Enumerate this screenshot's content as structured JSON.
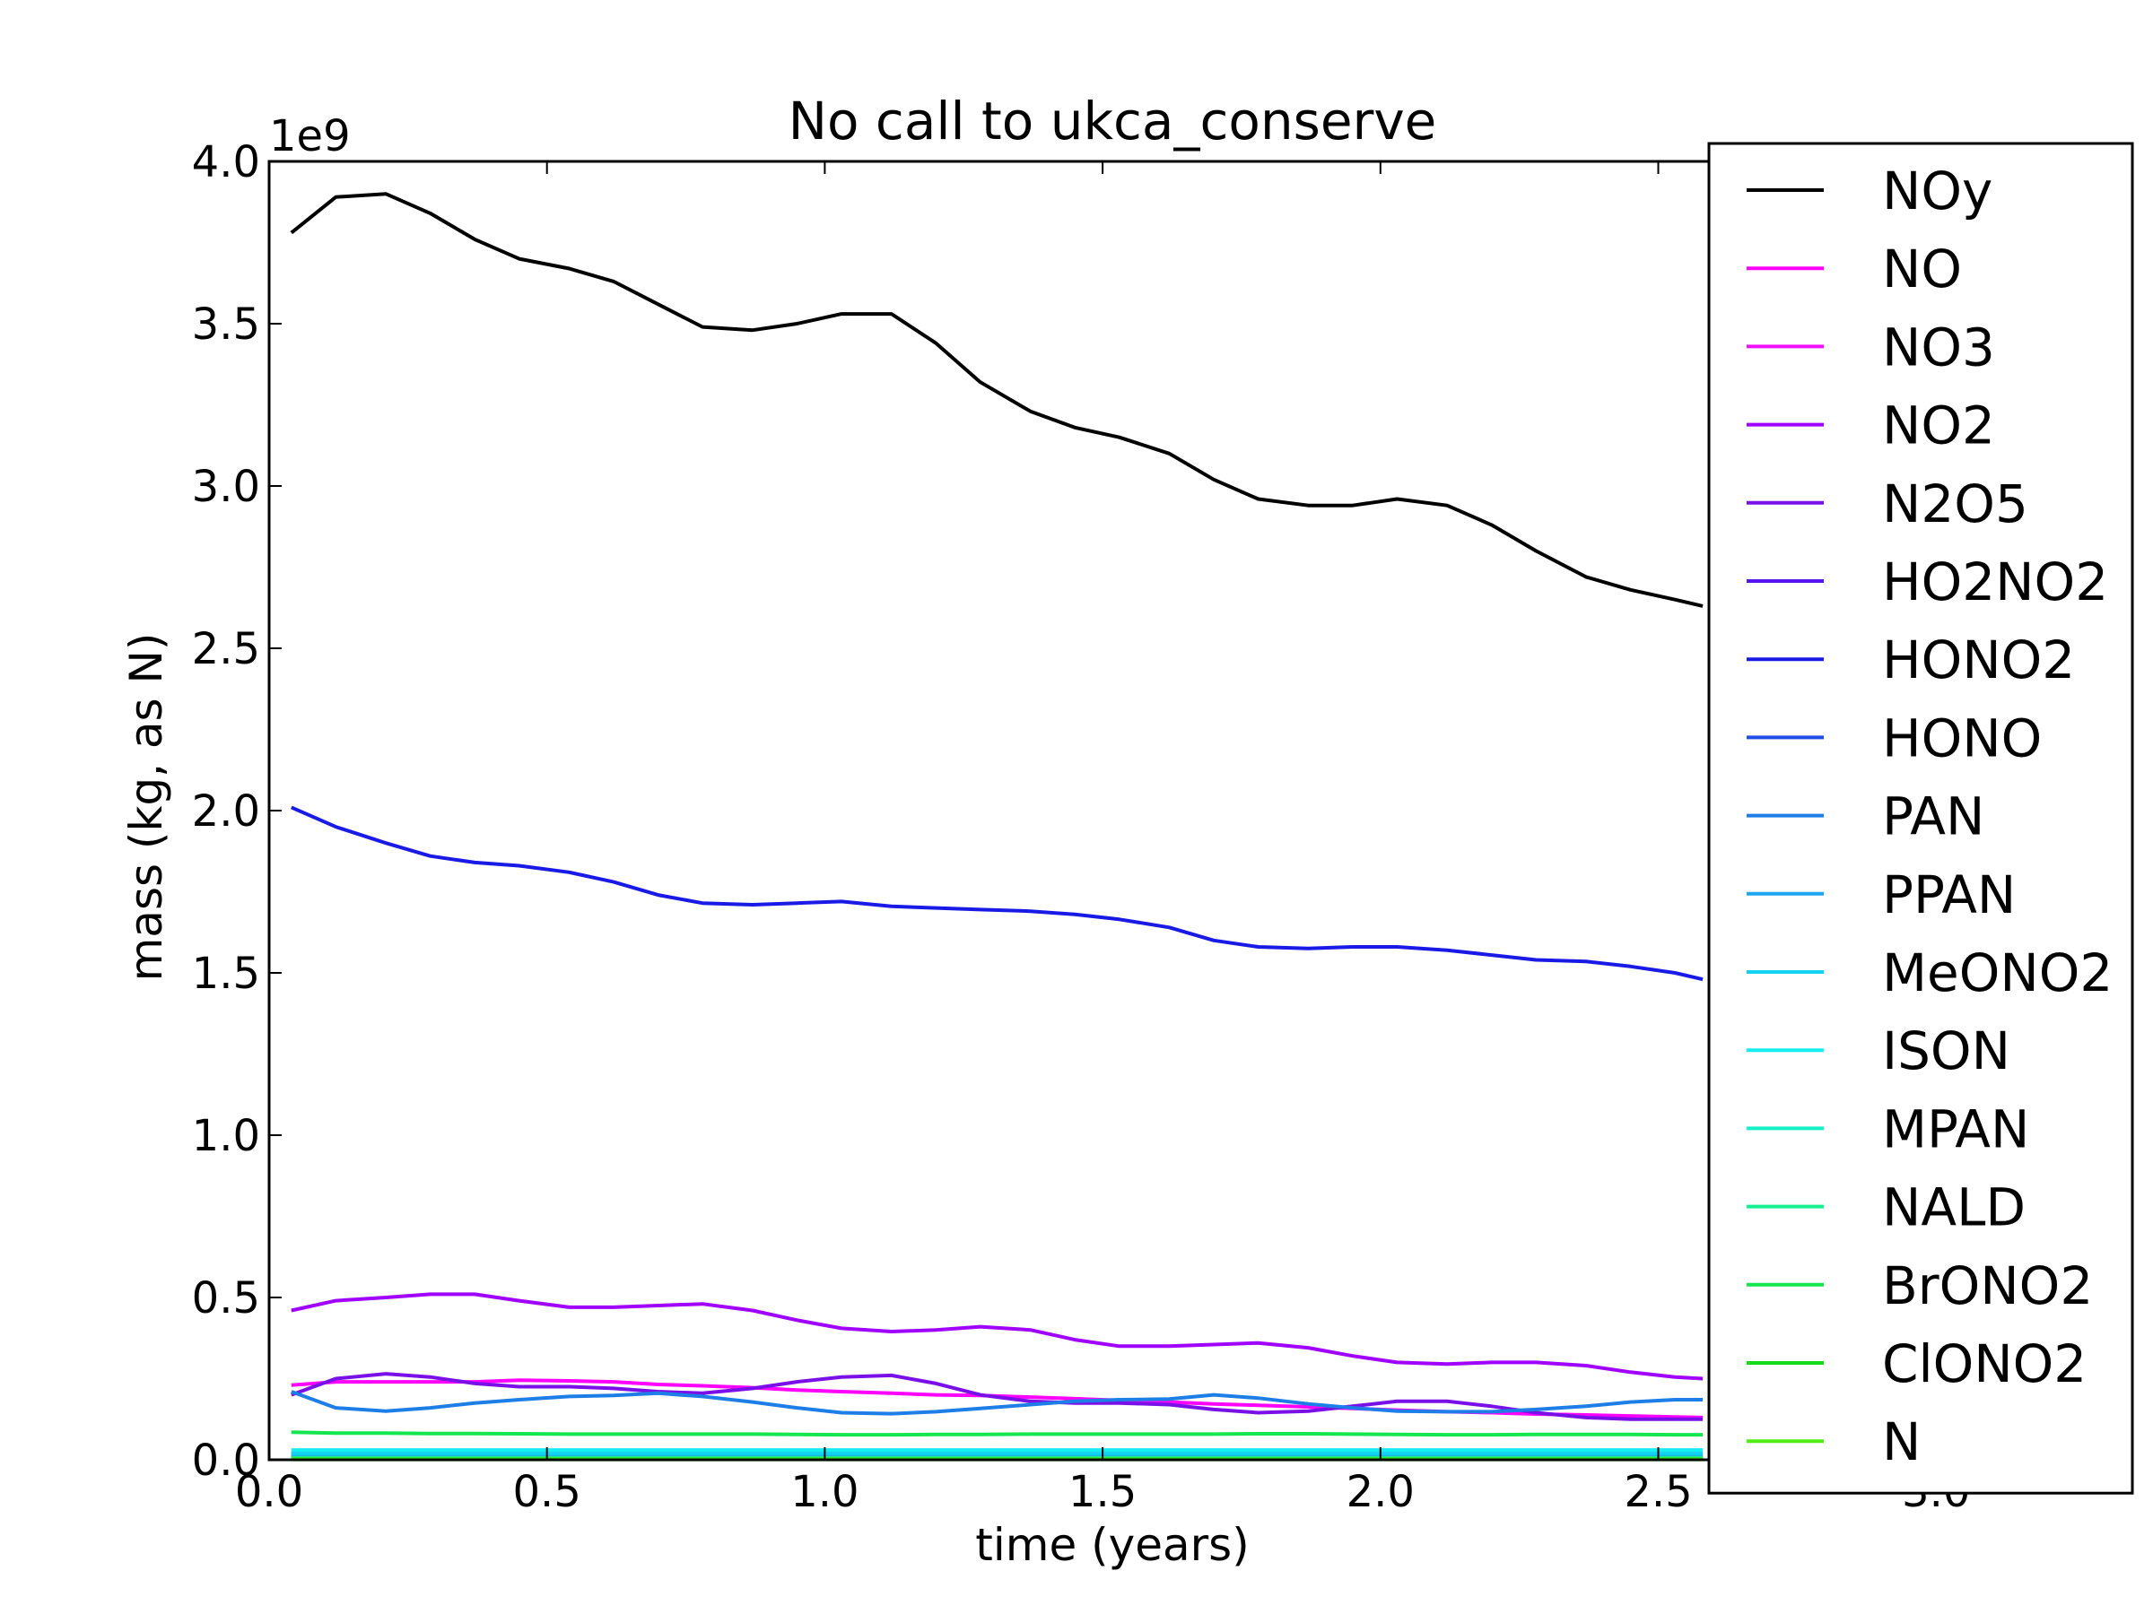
{
  "chart_data": {
    "type": "line",
    "title": "No call to ukca_conserve",
    "xlabel": "time (years)",
    "ylabel": "mass (kg, as N)",
    "y_multiplier_label": "1e9",
    "xlim": [
      0.0,
      3.35
    ],
    "ylim": [
      0.0,
      4.0
    ],
    "xticks": [
      0.0,
      0.5,
      1.0,
      1.5,
      2.0,
      2.5,
      3.0
    ],
    "xtick_labels": [
      "0.0",
      "0.5",
      "1.0",
      "1.5",
      "2.0",
      "2.5",
      "3.0"
    ],
    "yticks": [
      0.0,
      0.5,
      1.0,
      1.5,
      2.0,
      2.5,
      3.0,
      3.5,
      4.0
    ],
    "ytick_labels": [
      "0.0",
      "0.5",
      "1.0",
      "1.5",
      "2.0",
      "2.5",
      "3.0",
      "3.5",
      "4.0"
    ],
    "grid": false,
    "legend_position": "right",
    "x": [
      0.04,
      0.12,
      0.21,
      0.29,
      0.37,
      0.45,
      0.54,
      0.62,
      0.7,
      0.78,
      0.87,
      0.95,
      1.03,
      1.12,
      1.2,
      1.28,
      1.37,
      1.45,
      1.53,
      1.62,
      1.7,
      1.78,
      1.87,
      1.95,
      2.03,
      2.12,
      2.2,
      2.28,
      2.37,
      2.45,
      2.53,
      2.58
    ],
    "series": [
      {
        "name": "NOy",
        "color": "#000000",
        "values": [
          3.78,
          3.89,
          3.9,
          3.84,
          3.76,
          3.7,
          3.67,
          3.63,
          3.56,
          3.49,
          3.48,
          3.5,
          3.53,
          3.53,
          3.44,
          3.32,
          3.23,
          3.18,
          3.15,
          3.1,
          3.02,
          2.96,
          2.94,
          2.94,
          2.96,
          2.94,
          2.88,
          2.8,
          2.72,
          2.68,
          2.65,
          2.63
        ]
      },
      {
        "name": "NO",
        "color": "#ff00ff",
        "values": [
          0.23,
          0.24,
          0.24,
          0.24,
          0.24,
          0.245,
          0.243,
          0.24,
          0.232,
          0.228,
          0.222,
          0.215,
          0.21,
          0.205,
          0.2,
          0.198,
          0.193,
          0.188,
          0.183,
          0.178,
          0.172,
          0.168,
          0.163,
          0.158,
          0.153,
          0.148,
          0.145,
          0.141,
          0.138,
          0.135,
          0.132,
          0.13
        ]
      },
      {
        "name": "NO3",
        "color": "#f010ff",
        "values": [
          0.012,
          0.012,
          0.012,
          0.012,
          0.012,
          0.012,
          0.012,
          0.012,
          0.012,
          0.012,
          0.012,
          0.012,
          0.012,
          0.012,
          0.012,
          0.012,
          0.012,
          0.012,
          0.012,
          0.012,
          0.012,
          0.012,
          0.012,
          0.012,
          0.012,
          0.012,
          0.012,
          0.012,
          0.012,
          0.012,
          0.012,
          0.012
        ]
      },
      {
        "name": "NO2",
        "color": "#a000ff",
        "values": [
          0.46,
          0.49,
          0.5,
          0.51,
          0.51,
          0.49,
          0.47,
          0.47,
          0.475,
          0.48,
          0.46,
          0.43,
          0.405,
          0.395,
          0.4,
          0.41,
          0.4,
          0.37,
          0.35,
          0.35,
          0.355,
          0.36,
          0.345,
          0.32,
          0.3,
          0.295,
          0.3,
          0.3,
          0.29,
          0.27,
          0.255,
          0.25
        ]
      },
      {
        "name": "N2O5",
        "color": "#7a10e8",
        "values": [
          0.2,
          0.25,
          0.265,
          0.255,
          0.235,
          0.225,
          0.225,
          0.22,
          0.21,
          0.205,
          0.22,
          0.24,
          0.255,
          0.26,
          0.235,
          0.2,
          0.18,
          0.175,
          0.175,
          0.17,
          0.155,
          0.145,
          0.15,
          0.165,
          0.18,
          0.18,
          0.165,
          0.145,
          0.13,
          0.125,
          0.125,
          0.125
        ]
      },
      {
        "name": "HO2NO2",
        "color": "#5514f0",
        "values": [
          0.02,
          0.02,
          0.02,
          0.02,
          0.02,
          0.02,
          0.02,
          0.02,
          0.02,
          0.02,
          0.02,
          0.02,
          0.02,
          0.02,
          0.02,
          0.02,
          0.02,
          0.02,
          0.02,
          0.02,
          0.02,
          0.02,
          0.02,
          0.02,
          0.02,
          0.02,
          0.02,
          0.02,
          0.02,
          0.02,
          0.02,
          0.02
        ]
      },
      {
        "name": "HONO2",
        "color": "#1a1ae6",
        "values": [
          2.01,
          1.95,
          1.9,
          1.86,
          1.84,
          1.83,
          1.81,
          1.78,
          1.74,
          1.715,
          1.71,
          1.715,
          1.72,
          1.705,
          1.7,
          1.695,
          1.69,
          1.68,
          1.665,
          1.64,
          1.6,
          1.58,
          1.575,
          1.58,
          1.58,
          1.57,
          1.555,
          1.54,
          1.535,
          1.52,
          1.5,
          1.48
        ]
      },
      {
        "name": "HONO",
        "color": "#1e4ee6",
        "values": [
          0.008,
          0.008,
          0.008,
          0.008,
          0.008,
          0.008,
          0.008,
          0.008,
          0.008,
          0.008,
          0.008,
          0.008,
          0.008,
          0.008,
          0.008,
          0.008,
          0.008,
          0.008,
          0.008,
          0.008,
          0.008,
          0.008,
          0.008,
          0.008,
          0.008,
          0.008,
          0.008,
          0.008,
          0.008,
          0.008,
          0.008,
          0.008
        ]
      },
      {
        "name": "PAN",
        "color": "#1e7ee8",
        "values": [
          0.21,
          0.16,
          0.15,
          0.16,
          0.175,
          0.185,
          0.195,
          0.198,
          0.205,
          0.195,
          0.178,
          0.16,
          0.145,
          0.142,
          0.148,
          0.158,
          0.17,
          0.18,
          0.185,
          0.187,
          0.2,
          0.19,
          0.172,
          0.16,
          0.15,
          0.148,
          0.148,
          0.155,
          0.165,
          0.178,
          0.185,
          0.185
        ]
      },
      {
        "name": "PPAN",
        "color": "#1ea6f0",
        "values": [
          0.01,
          0.01,
          0.01,
          0.01,
          0.01,
          0.01,
          0.01,
          0.01,
          0.01,
          0.01,
          0.01,
          0.01,
          0.01,
          0.01,
          0.01,
          0.01,
          0.01,
          0.01,
          0.01,
          0.01,
          0.01,
          0.01,
          0.01,
          0.01,
          0.01,
          0.01,
          0.01,
          0.01,
          0.01,
          0.01,
          0.01,
          0.01
        ]
      },
      {
        "name": "MeONO2",
        "color": "#14d2f0",
        "values": [
          0.02,
          0.02,
          0.02,
          0.02,
          0.02,
          0.02,
          0.02,
          0.02,
          0.02,
          0.02,
          0.02,
          0.02,
          0.02,
          0.02,
          0.02,
          0.02,
          0.02,
          0.02,
          0.02,
          0.02,
          0.02,
          0.02,
          0.02,
          0.02,
          0.02,
          0.02,
          0.02,
          0.02,
          0.02,
          0.02,
          0.02,
          0.02
        ]
      },
      {
        "name": "ISON",
        "color": "#14eef0",
        "values": [
          0.03,
          0.03,
          0.03,
          0.03,
          0.03,
          0.03,
          0.03,
          0.03,
          0.03,
          0.03,
          0.03,
          0.03,
          0.03,
          0.03,
          0.03,
          0.03,
          0.03,
          0.03,
          0.03,
          0.03,
          0.03,
          0.03,
          0.03,
          0.03,
          0.03,
          0.03,
          0.03,
          0.03,
          0.03,
          0.03,
          0.03,
          0.03
        ]
      },
      {
        "name": "MPAN",
        "color": "#14f0c8",
        "values": [
          0.004,
          0.004,
          0.004,
          0.004,
          0.004,
          0.004,
          0.004,
          0.004,
          0.004,
          0.004,
          0.004,
          0.004,
          0.004,
          0.004,
          0.004,
          0.004,
          0.004,
          0.004,
          0.004,
          0.004,
          0.004,
          0.004,
          0.004,
          0.004,
          0.004,
          0.004,
          0.004,
          0.004,
          0.004,
          0.004,
          0.004,
          0.004
        ]
      },
      {
        "name": "NALD",
        "color": "#14f090",
        "values": [
          0.006,
          0.006,
          0.006,
          0.006,
          0.006,
          0.006,
          0.006,
          0.006,
          0.006,
          0.006,
          0.006,
          0.006,
          0.006,
          0.006,
          0.006,
          0.006,
          0.006,
          0.006,
          0.006,
          0.006,
          0.006,
          0.006,
          0.006,
          0.006,
          0.006,
          0.006,
          0.006,
          0.006,
          0.006,
          0.006,
          0.006,
          0.006
        ]
      },
      {
        "name": "BrONO2",
        "color": "#14e650",
        "values": [
          0.085,
          0.082,
          0.082,
          0.081,
          0.081,
          0.08,
          0.079,
          0.079,
          0.079,
          0.079,
          0.079,
          0.078,
          0.077,
          0.077,
          0.078,
          0.078,
          0.079,
          0.079,
          0.079,
          0.079,
          0.079,
          0.08,
          0.08,
          0.079,
          0.078,
          0.077,
          0.077,
          0.078,
          0.078,
          0.078,
          0.077,
          0.077
        ]
      },
      {
        "name": "ClONO2",
        "color": "#14dc14",
        "values": [
          0.002,
          0.002,
          0.002,
          0.002,
          0.002,
          0.002,
          0.002,
          0.002,
          0.002,
          0.002,
          0.002,
          0.002,
          0.002,
          0.002,
          0.002,
          0.002,
          0.002,
          0.002,
          0.002,
          0.002,
          0.002,
          0.002,
          0.002,
          0.002,
          0.002,
          0.002,
          0.002,
          0.002,
          0.002,
          0.002,
          0.002,
          0.002
        ]
      },
      {
        "name": "N",
        "color": "#50ee14",
        "values": [
          0.001,
          0.001,
          0.001,
          0.001,
          0.001,
          0.001,
          0.001,
          0.001,
          0.001,
          0.001,
          0.001,
          0.001,
          0.001,
          0.001,
          0.001,
          0.001,
          0.001,
          0.001,
          0.001,
          0.001,
          0.001,
          0.001,
          0.001,
          0.001,
          0.001,
          0.001,
          0.001,
          0.001,
          0.001,
          0.001,
          0.001,
          0.001
        ]
      }
    ]
  }
}
